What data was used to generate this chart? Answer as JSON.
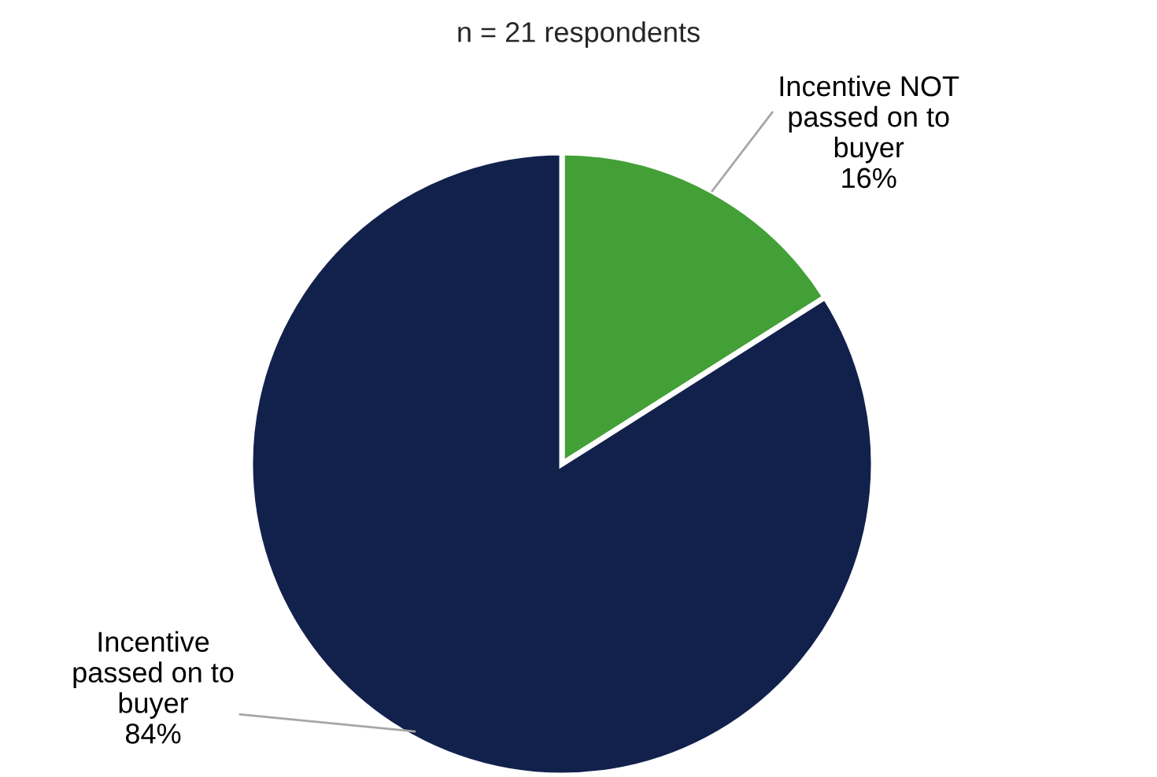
{
  "chart_data": {
    "type": "pie",
    "title": "n = 21 respondents",
    "categories": [
      "Incentive NOT\npassed on to\nbuyer",
      "Incentive\npassed on to\nbuyer"
    ],
    "values": [
      16,
      84
    ],
    "value_labels": [
      "16%",
      "84%"
    ],
    "colors": [
      "#43a037",
      "#12214c"
    ],
    "legend": false
  }
}
